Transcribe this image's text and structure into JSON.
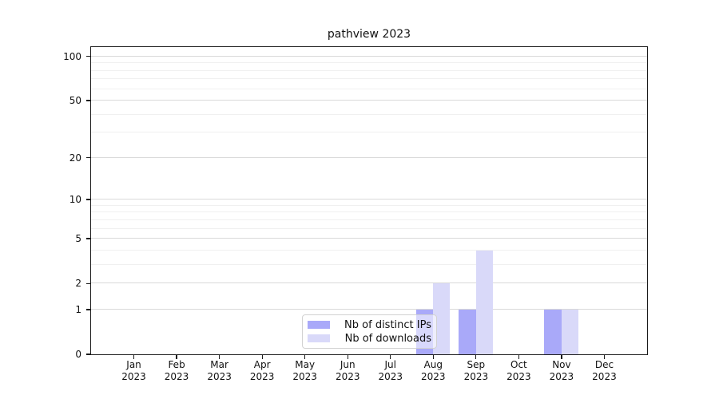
{
  "chart_data": {
    "type": "bar",
    "title": "pathview 2023",
    "categories": [
      {
        "month": "Jan",
        "year": "2023"
      },
      {
        "month": "Feb",
        "year": "2023"
      },
      {
        "month": "Mar",
        "year": "2023"
      },
      {
        "month": "Apr",
        "year": "2023"
      },
      {
        "month": "May",
        "year": "2023"
      },
      {
        "month": "Jun",
        "year": "2023"
      },
      {
        "month": "Jul",
        "year": "2023"
      },
      {
        "month": "Aug",
        "year": "2023"
      },
      {
        "month": "Sep",
        "year": "2023"
      },
      {
        "month": "Oct",
        "year": "2023"
      },
      {
        "month": "Nov",
        "year": "2023"
      },
      {
        "month": "Dec",
        "year": "2023"
      }
    ],
    "series": [
      {
        "name": "Nb of distinct IPs",
        "color": "#a9a9f9",
        "values": [
          0,
          0,
          0,
          0,
          0,
          0,
          0,
          1,
          1,
          0,
          1,
          0
        ]
      },
      {
        "name": "Nb of downloads",
        "color": "#d9d9f9",
        "values": [
          0,
          0,
          0,
          0,
          0,
          0,
          0,
          2,
          4,
          0,
          1,
          0
        ]
      }
    ],
    "y_axis": {
      "scale": "log10(1+x)",
      "tick_values": [
        0,
        1,
        2,
        5,
        10,
        20,
        50,
        100
      ],
      "tick_labels": [
        "0",
        "1",
        "2",
        "5",
        "10",
        "20",
        "50",
        "100"
      ],
      "minor_gridlines": [
        3,
        4,
        6,
        7,
        8,
        9,
        30,
        40,
        60,
        70,
        80,
        90
      ],
      "ylim": [
        0,
        115
      ]
    },
    "legend": {
      "position": "lower center",
      "entries": [
        "Nb of distinct IPs",
        "Nb of downloads"
      ]
    },
    "grid": true,
    "background_color": "#ffffff"
  }
}
